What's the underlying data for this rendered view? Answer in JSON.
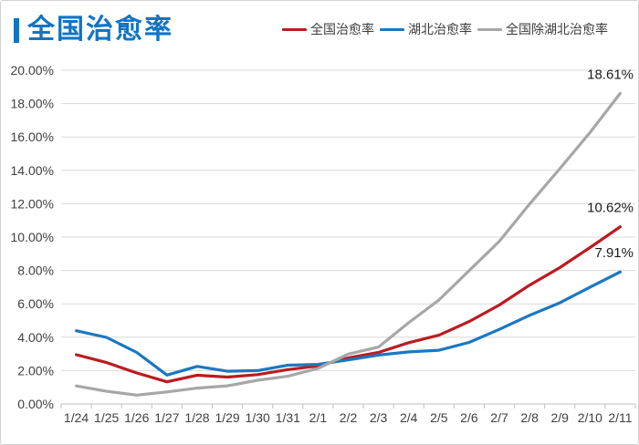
{
  "header": {
    "title": "全国治愈率"
  },
  "legend": {
    "items": [
      {
        "label": "全国治愈率",
        "color": "#bb1b20"
      },
      {
        "label": "湖北治愈率",
        "color": "#1b78c0"
      },
      {
        "label": "全国除湖北治愈率",
        "color": "#a7a7a7"
      }
    ]
  },
  "chart_data": {
    "type": "line",
    "title": "全国治愈率",
    "categories": [
      "1/24",
      "1/25",
      "1/26",
      "1/27",
      "1/28",
      "1/29",
      "1/30",
      "1/31",
      "2/1",
      "2/2",
      "2/3",
      "2/4",
      "2/5",
      "2/6",
      "2/7",
      "2/8",
      "2/9",
      "2/10",
      "2/11"
    ],
    "series": [
      {
        "name": "全国治愈率",
        "color": "#bb1b20",
        "values": [
          2.95,
          2.48,
          1.86,
          1.33,
          1.72,
          1.61,
          1.76,
          2.06,
          2.28,
          2.76,
          3.09,
          3.67,
          4.12,
          4.94,
          5.93,
          7.12,
          8.17,
          9.37,
          10.62
        ]
      },
      {
        "name": "湖北治愈率",
        "color": "#1b78c0",
        "values": [
          4.39,
          3.99,
          3.09,
          1.73,
          2.25,
          1.96,
          2.0,
          2.32,
          2.37,
          2.64,
          2.93,
          3.12,
          3.22,
          3.69,
          4.47,
          5.31,
          6.06,
          7.0,
          7.91
        ]
      },
      {
        "name": "全国除湖北治愈率",
        "color": "#a7a7a7",
        "values": [
          1.08,
          0.76,
          0.53,
          0.72,
          0.95,
          1.09,
          1.42,
          1.66,
          2.13,
          2.99,
          3.41,
          4.87,
          6.23,
          7.99,
          9.75,
          11.98,
          14.1,
          16.26,
          18.61
        ]
      }
    ],
    "xlabel": "",
    "ylabel": "",
    "ylim": [
      0,
      20
    ],
    "y_tick_step": 2,
    "y_tick_labels": [
      "0.00%",
      "2.00%",
      "4.00%",
      "6.00%",
      "8.00%",
      "10.00%",
      "12.00%",
      "14.00%",
      "16.00%",
      "18.00%",
      "20.00%"
    ],
    "grid": true,
    "legend_position": "top-right",
    "annotations": [
      {
        "series": "全国除湖北治愈率",
        "x": "2/11",
        "text": "18.61%"
      },
      {
        "series": "全国治愈率",
        "x": "2/11",
        "text": "10.62%"
      },
      {
        "series": "湖北治愈率",
        "x": "2/11",
        "text": "7.91%"
      }
    ],
    "colors": {
      "grid": "#d9d9d9",
      "axis": "#bfbfbf",
      "tick_label": "#404040",
      "annotation": "#1a1a1a",
      "title": "#1174c5"
    }
  }
}
